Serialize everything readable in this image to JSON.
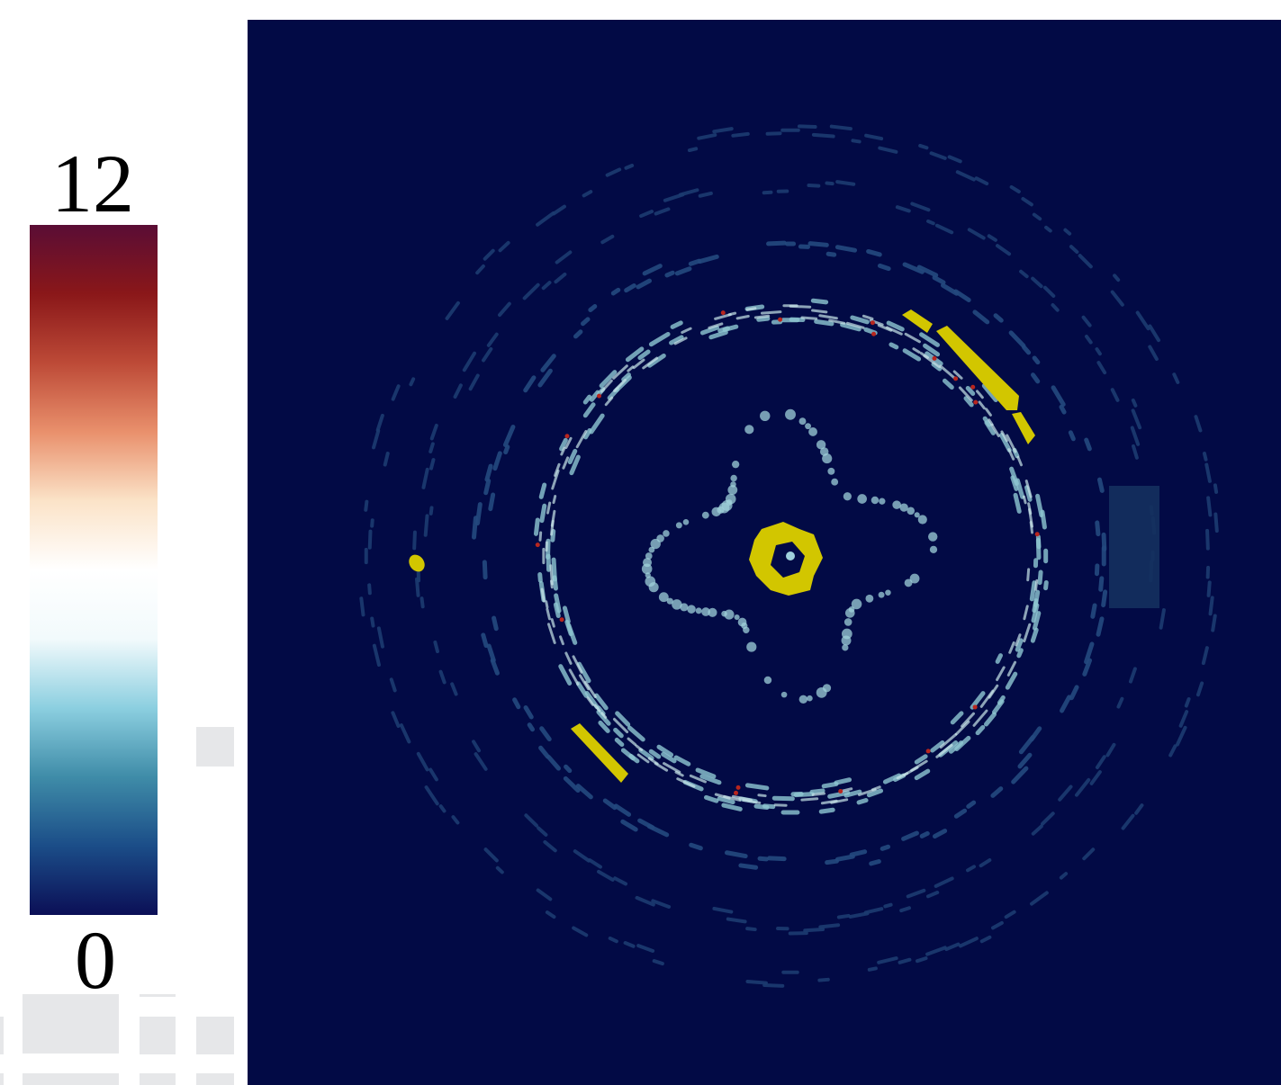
{
  "colorbar": {
    "max": 12,
    "min": 0,
    "colors": [
      "#5a0d35",
      "#8a1719",
      "#bd4a37",
      "#e9906c",
      "#fbe3c8",
      "#ffffff",
      "#f2fafc",
      "#8ccfe0",
      "#3f8ca8",
      "#1b4d88",
      "#0b0f56"
    ]
  }
}
